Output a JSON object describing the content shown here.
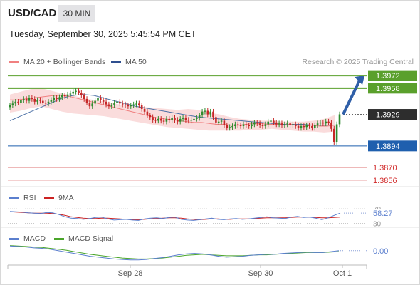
{
  "header": {
    "symbol": "USD/CAD",
    "timeframe": "30 MIN",
    "datetime": "Tuesday, September 30, 2025 5:45:54 PM CET",
    "copyright": "Research © 2025 Trading Central"
  },
  "colors": {
    "up_candle": "#2e8b2e",
    "down_candle": "#c62828",
    "bollinger_fill": "#f9d6d6",
    "ma20": "#f08080",
    "ma50": "#4a6fa5",
    "resistance": "#5aa02c",
    "support": "#1f5fae",
    "target_label": "#5aa02c",
    "support_label": "#1f5fae",
    "last_price_label": "#2d2d2d",
    "projection_arrow": "#2f5fa8",
    "rsi": "#5b7fce",
    "rsi_ma": "#cc2222",
    "macd": "#5b7fce",
    "macd_signal": "#4aa52a"
  },
  "chart_data": [
    {
      "type": "candlestick",
      "title": "",
      "legend": [
        {
          "name": "MA 20 + Bollinger Bands",
          "color": "#f08080"
        },
        {
          "name": "MA 50",
          "color": "#4a6fa5"
        }
      ],
      "legend_position": "top-left",
      "x_tick_labels": [
        "Sep 28",
        "Sep 30",
        "Oct 1"
      ],
      "y_range": [
        1.3852,
        1.398
      ],
      "levels": [
        {
          "value": 1.3972,
          "label": "1.3972",
          "kind": "resistance"
        },
        {
          "value": 1.3958,
          "label": "1.3958",
          "kind": "resistance"
        },
        {
          "value": 1.3929,
          "label": "1.3929",
          "kind": "last"
        },
        {
          "value": 1.3894,
          "label": "1.3894",
          "kind": "support"
        },
        {
          "value": 1.387,
          "label": "1.3870",
          "kind": "minor"
        },
        {
          "value": 1.3856,
          "label": "1.3856",
          "kind": "minor"
        }
      ],
      "projection": {
        "from": 1.3929,
        "to": 1.3972
      },
      "candles_close": [
        1.3939,
        1.3941,
        1.3943,
        1.3942,
        1.3945,
        1.3946,
        1.3944,
        1.3947,
        1.3946,
        1.3943,
        1.3945,
        1.3944,
        1.3942,
        1.3941,
        1.3943,
        1.3945,
        1.3947,
        1.3946,
        1.3948,
        1.395,
        1.3949,
        1.3951,
        1.3952,
        1.3954,
        1.3955,
        1.3953,
        1.395,
        1.3946,
        1.3942,
        1.3938,
        1.3941,
        1.3944,
        1.3947,
        1.3945,
        1.3943,
        1.394,
        1.3938,
        1.3939,
        1.3942,
        1.3943,
        1.3941,
        1.394,
        1.3939,
        1.3938,
        1.3939,
        1.394,
        1.3941,
        1.3939,
        1.3935,
        1.3932,
        1.3928,
        1.3926,
        1.3923,
        1.3922,
        1.3924,
        1.3922,
        1.3921,
        1.3924,
        1.3923,
        1.3925,
        1.3923,
        1.3921,
        1.3924,
        1.3925,
        1.3923,
        1.3922,
        1.3923,
        1.3924,
        1.3925,
        1.3928,
        1.3932,
        1.3933,
        1.3929,
        1.3932,
        1.3926,
        1.392,
        1.3921,
        1.3922,
        1.3917,
        1.3914,
        1.3915,
        1.3916,
        1.3918,
        1.3917,
        1.3916,
        1.3918,
        1.3917,
        1.3916,
        1.3918,
        1.392,
        1.3919,
        1.3917,
        1.3916,
        1.3918,
        1.3921,
        1.3922,
        1.392,
        1.3918,
        1.3919,
        1.3917,
        1.3918,
        1.3919,
        1.3917,
        1.3918,
        1.3916,
        1.3914,
        1.3916,
        1.3915,
        1.3917,
        1.3916,
        1.3914,
        1.3917,
        1.3919,
        1.392,
        1.3919,
        1.3921,
        1.392,
        1.3913,
        1.3898,
        1.3918,
        1.3929
      ],
      "ma20": [
        1.3945,
        1.3945,
        1.3946,
        1.3947,
        1.3948,
        1.3949,
        1.395,
        1.395,
        1.3949,
        1.3947,
        1.3945,
        1.3943,
        1.3941,
        1.3939,
        1.3937,
        1.3935,
        1.3933,
        1.3931,
        1.3929,
        1.3927,
        1.3925,
        1.3924,
        1.3923,
        1.3922,
        1.3921,
        1.392,
        1.392,
        1.3919,
        1.3918,
        1.3918,
        1.3917,
        1.3917,
        1.3918,
        1.3919,
        1.3919,
        1.3918,
        1.3918,
        1.3917,
        1.3918,
        1.3917,
        1.3917,
        1.3917,
        1.3916,
        1.3916,
        1.3917
      ],
      "bollinger_upper": [
        1.3951,
        1.3954,
        1.3957,
        1.3958,
        1.3955,
        1.3952,
        1.395,
        1.3947,
        1.3945,
        1.3943,
        1.3941,
        1.3939,
        1.3938,
        1.3937,
        1.3936,
        1.3935,
        1.3934,
        1.3935,
        1.3934,
        1.3931,
        1.3929,
        1.3926,
        1.3924,
        1.3923,
        1.3922,
        1.3922,
        1.3921,
        1.3921,
        1.3921,
        1.3922,
        1.3924,
        1.3928
      ],
      "bollinger_lower": [
        1.3931,
        1.3933,
        1.3936,
        1.3938,
        1.3935,
        1.3932,
        1.393,
        1.3929,
        1.3928,
        1.3927,
        1.3925,
        1.3923,
        1.3921,
        1.3919,
        1.3917,
        1.3915,
        1.3914,
        1.3913,
        1.3912,
        1.3911,
        1.3911,
        1.3911,
        1.3911,
        1.3912,
        1.3912,
        1.3913,
        1.3912,
        1.3911,
        1.391,
        1.391,
        1.3909,
        1.391
      ],
      "ma50": [
        1.3922,
        1.3927,
        1.3932,
        1.3937,
        1.3942,
        1.3947,
        1.395,
        1.3951,
        1.395,
        1.3947,
        1.3944,
        1.3941,
        1.3938,
        1.3936,
        1.3934,
        1.3932,
        1.393,
        1.3928,
        1.3926,
        1.3925,
        1.3924,
        1.3923,
        1.3922,
        1.3921,
        1.392,
        1.3919,
        1.3918,
        1.3918,
        1.3918,
        1.3917,
        1.3917,
        1.3917
      ]
    },
    {
      "type": "line",
      "name": "RSI",
      "legend": [
        {
          "name": "RSI",
          "color": "#5b7fce"
        },
        {
          "name": "9MA",
          "color": "#cc2222"
        }
      ],
      "y_range": [
        25,
        80
      ],
      "y_tick_labels": [
        "70",
        "58.27",
        "30"
      ],
      "last_value_label": "58.27",
      "series": [
        {
          "name": "RSI",
          "values": [
            63,
            62,
            61,
            59,
            58,
            57,
            60,
            59,
            54,
            48,
            44,
            43,
            41,
            43,
            46,
            47,
            42,
            39,
            40,
            41,
            39,
            38,
            42,
            44,
            45,
            43,
            46,
            47,
            41,
            39,
            38,
            40,
            42,
            44,
            41,
            40,
            42,
            43,
            41,
            42,
            44,
            46,
            48,
            45,
            44,
            43,
            47,
            49,
            46,
            47,
            44,
            40,
            45,
            52,
            58.27
          ]
        },
        {
          "name": "9MA",
          "values": [
            62,
            61,
            60,
            59,
            58,
            58,
            58,
            57,
            55,
            52,
            48,
            46,
            44,
            43,
            43,
            44,
            44,
            43,
            42,
            41,
            40,
            40,
            41,
            42,
            43,
            44,
            45,
            45,
            44,
            42,
            41,
            40,
            41,
            42,
            42,
            41,
            41,
            42,
            42,
            42,
            43,
            44,
            45,
            45,
            45,
            45,
            46,
            47,
            47,
            47,
            46,
            45,
            45,
            46,
            47
          ]
        }
      ]
    },
    {
      "type": "line",
      "name": "MACD",
      "legend": [
        {
          "name": "MACD",
          "color": "#5b7fce"
        },
        {
          "name": "MACD Signal",
          "color": "#4aa52a"
        }
      ],
      "y_range": [
        -0.0025,
        0.0015
      ],
      "y_tick_labels": [
        "0.00"
      ],
      "series": [
        {
          "name": "MACD",
          "values": [
            0.001,
            0.0009,
            0.0008,
            0.0006,
            0.0005,
            0.0003,
            0.0,
            -0.0003,
            -0.0006,
            -0.0009,
            -0.0012,
            -0.0014,
            -0.0016,
            -0.0018,
            -0.0019,
            -0.002,
            -0.002,
            -0.0019,
            -0.0017,
            -0.0015,
            -0.0012,
            -0.0009,
            -0.0007,
            -0.0006,
            -0.0007,
            -0.0009,
            -0.0012,
            -0.0014,
            -0.0013,
            -0.0012,
            -0.001,
            -0.0009,
            -0.0008,
            -0.0008,
            -0.0006,
            -0.0005,
            -0.0004,
            -0.0003,
            -0.0004,
            -0.0004,
            -0.0002,
            0.0
          ]
        },
        {
          "name": "MACD Signal",
          "values": [
            0.0011,
            0.001,
            0.0009,
            0.0008,
            0.0007,
            0.0005,
            0.0003,
            0.0001,
            -0.0002,
            -0.0005,
            -0.0008,
            -0.001,
            -0.0012,
            -0.0014,
            -0.0016,
            -0.0017,
            -0.0018,
            -0.0018,
            -0.0017,
            -0.0016,
            -0.0014,
            -0.0012,
            -0.001,
            -0.0009,
            -0.0008,
            -0.0009,
            -0.001,
            -0.0011,
            -0.0011,
            -0.0011,
            -0.001,
            -0.0009,
            -0.0009,
            -0.0008,
            -0.0007,
            -0.0006,
            -0.0005,
            -0.0004,
            -0.0004,
            -0.0004,
            -0.0003,
            -0.0002
          ]
        }
      ]
    }
  ]
}
